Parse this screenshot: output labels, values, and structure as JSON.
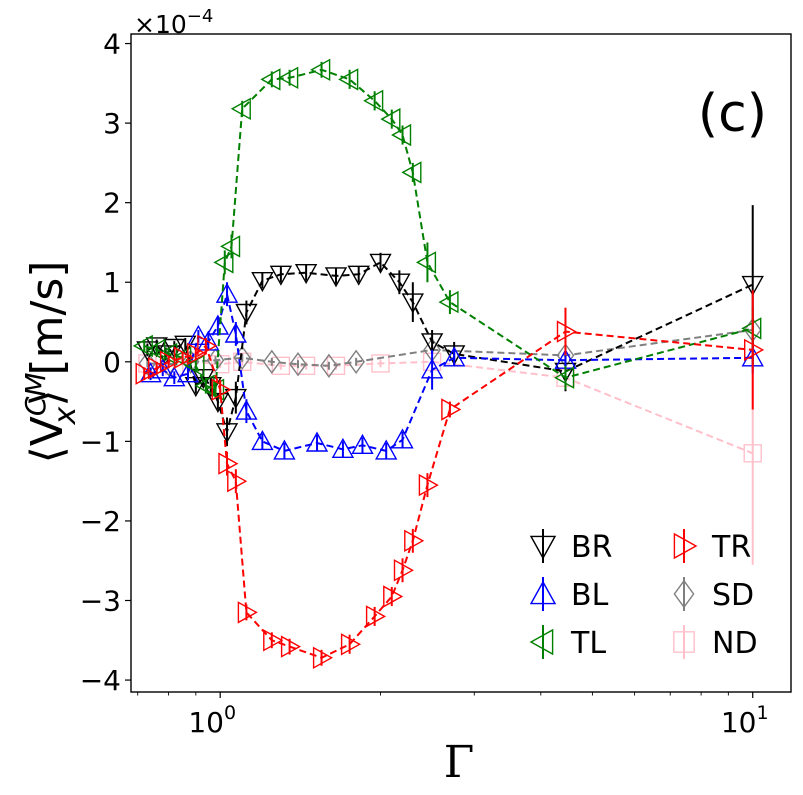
{
  "chart_data": {
    "type": "line",
    "panel_label": "(c)",
    "xlabel": "Γ",
    "ylabel_main": "⟨V",
    "ylabel_sub": "x",
    "ylabel_sup": "CM",
    "ylabel_tail": "⟩ [m/s]",
    "y_scale_prefix": "×10",
    "y_scale_exponent": "−4",
    "x_scale": "log",
    "xlim": [
      0.68,
      11.8
    ],
    "ylim": [
      -4.15,
      4.12
    ],
    "x_ticks": [
      {
        "value": 1,
        "base": "10",
        "exp": "0"
      },
      {
        "value": 10,
        "base": "10",
        "exp": "1"
      }
    ],
    "y_ticks": [
      {
        "value": -4,
        "label": "−4"
      },
      {
        "value": -3,
        "label": "−3"
      },
      {
        "value": -2,
        "label": "−2"
      },
      {
        "value": -1,
        "label": "−1"
      },
      {
        "value": 0,
        "label": "0"
      },
      {
        "value": 1,
        "label": "1"
      },
      {
        "value": 2,
        "label": "2"
      },
      {
        "value": 3,
        "label": "3"
      },
      {
        "value": 4,
        "label": "4"
      }
    ],
    "series": [
      {
        "name": "BR",
        "color": "#000000",
        "marker": "triangle-down",
        "x": [
          0.73,
          0.76,
          0.79,
          0.82,
          0.86,
          0.9,
          0.93,
          0.96,
          0.99,
          1.03,
          1.07,
          1.12,
          1.2,
          1.3,
          1.45,
          1.65,
          1.82,
          2.0,
          2.17,
          2.3,
          2.5,
          2.75,
          4.45,
          10.0
        ],
        "y": [
          0.15,
          0.2,
          0.1,
          0.18,
          0.22,
          -0.3,
          -0.2,
          -0.3,
          -0.5,
          -0.88,
          -0.45,
          0.62,
          1.02,
          1.1,
          1.12,
          1.08,
          1.1,
          1.25,
          1.0,
          0.75,
          0.25,
          0.1,
          -0.12,
          0.97
        ],
        "err": [
          0.08,
          0.08,
          0.08,
          0.08,
          0.08,
          0.1,
          0.1,
          0.1,
          0.1,
          0.18,
          0.2,
          0.15,
          0.1,
          0.1,
          0.1,
          0.1,
          0.1,
          0.12,
          0.15,
          0.25,
          0.15,
          0.15,
          0.25,
          1.0
        ]
      },
      {
        "name": "BL",
        "color": "#0000ff",
        "marker": "triangle-up",
        "x": [
          0.74,
          0.78,
          0.82,
          0.87,
          0.91,
          0.95,
          0.99,
          1.03,
          1.07,
          1.12,
          1.2,
          1.32,
          1.52,
          1.7,
          1.85,
          2.05,
          2.2,
          2.5,
          2.75,
          4.45,
          10.0
        ],
        "y": [
          -0.15,
          -0.1,
          -0.2,
          -0.15,
          0.32,
          0.25,
          0.45,
          0.85,
          0.35,
          -0.62,
          -1.0,
          -1.12,
          -1.02,
          -1.1,
          -1.05,
          -1.12,
          -0.98,
          -0.1,
          0.05,
          0.02,
          0.05
        ],
        "err": [
          0.08,
          0.08,
          0.08,
          0.08,
          0.08,
          0.1,
          0.12,
          0.15,
          0.15,
          0.15,
          0.1,
          0.1,
          0.1,
          0.1,
          0.1,
          0.1,
          0.1,
          0.25,
          0.1,
          0.15,
          0.2
        ]
      },
      {
        "name": "TL",
        "color": "#008000",
        "marker": "triangle-left",
        "x": [
          0.72,
          0.76,
          0.8,
          0.85,
          0.9,
          0.94,
          0.98,
          1.02,
          1.05,
          1.1,
          1.25,
          1.35,
          1.55,
          1.75,
          1.95,
          2.1,
          2.2,
          2.3,
          2.45,
          2.7,
          4.45,
          10.0
        ],
        "y": [
          0.2,
          0.15,
          0.1,
          0.05,
          -0.05,
          -0.3,
          -0.35,
          1.25,
          1.45,
          3.18,
          3.55,
          3.57,
          3.67,
          3.55,
          3.28,
          3.05,
          2.85,
          2.38,
          1.25,
          0.75,
          -0.2,
          0.42
        ],
        "err": [
          0.08,
          0.08,
          0.08,
          0.08,
          0.08,
          0.1,
          0.1,
          0.15,
          0.15,
          0.1,
          0.1,
          0.1,
          0.1,
          0.12,
          0.12,
          0.12,
          0.12,
          0.12,
          0.25,
          0.15,
          0.15,
          0.25
        ]
      },
      {
        "name": "TR",
        "color": "#ff0000",
        "marker": "triangle-right",
        "x": [
          0.72,
          0.76,
          0.8,
          0.85,
          0.9,
          0.94,
          1.0,
          1.03,
          1.07,
          1.12,
          1.25,
          1.35,
          1.55,
          1.75,
          1.95,
          2.1,
          2.2,
          2.3,
          2.45,
          2.7,
          4.45,
          10.0
        ],
        "y": [
          -0.15,
          -0.08,
          0.0,
          0.05,
          0.1,
          0.2,
          -0.35,
          -1.28,
          -1.5,
          -3.15,
          -3.5,
          -3.58,
          -3.72,
          -3.55,
          -3.2,
          -2.95,
          -2.62,
          -2.25,
          -1.55,
          -0.6,
          0.38,
          0.15
        ],
        "err": [
          0.08,
          0.08,
          0.08,
          0.08,
          0.08,
          0.1,
          0.12,
          0.15,
          0.15,
          0.1,
          0.1,
          0.1,
          0.1,
          0.12,
          0.12,
          0.12,
          0.15,
          0.15,
          0.15,
          0.1,
          0.3,
          0.75
        ]
      },
      {
        "name": "SD",
        "color": "#808080",
        "marker": "diamond",
        "x": [
          0.73,
          0.8,
          0.88,
          0.98,
          1.1,
          1.25,
          1.4,
          1.6,
          1.8,
          2.5,
          4.45,
          10.0
        ],
        "y": [
          -0.02,
          -0.03,
          0.0,
          0.02,
          0.05,
          0.0,
          -0.03,
          -0.05,
          0.0,
          0.15,
          0.08,
          0.4
        ],
        "err": [
          0.05,
          0.05,
          0.05,
          0.05,
          0.05,
          0.05,
          0.05,
          0.05,
          0.05,
          0.05,
          0.1,
          0.3
        ]
      },
      {
        "name": "ND",
        "color": "#ffc0cb",
        "marker": "square",
        "x": [
          0.73,
          0.82,
          0.9,
          1.0,
          1.1,
          1.3,
          1.45,
          1.65,
          2.0,
          2.5,
          4.45,
          10.0
        ],
        "y": [
          -0.02,
          -0.05,
          0.0,
          -0.03,
          0.0,
          -0.05,
          -0.05,
          -0.05,
          -0.02,
          0.0,
          -0.2,
          -1.15
        ],
        "err": [
          0.05,
          0.05,
          0.05,
          0.05,
          0.05,
          0.05,
          0.05,
          0.05,
          0.05,
          0.05,
          0.15,
          1.4
        ]
      }
    ]
  }
}
